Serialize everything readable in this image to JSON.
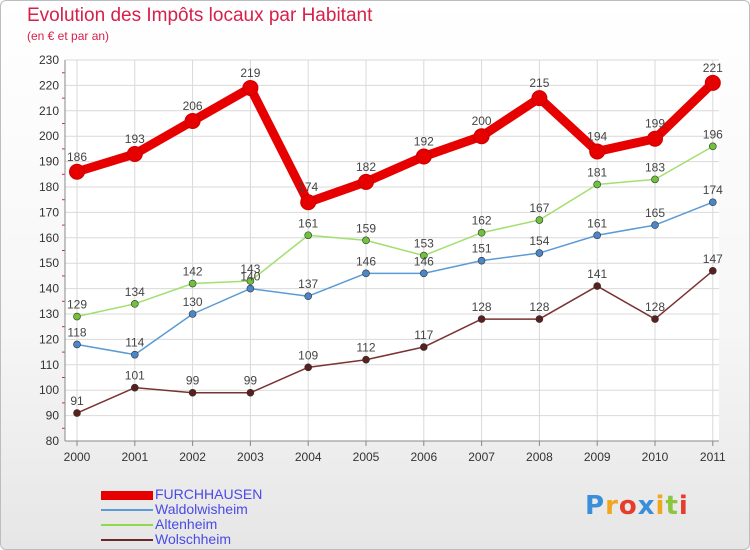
{
  "chart_data": {
    "type": "line",
    "title": "Evolution des Impôts locaux par Habitant",
    "subtitle": "(en € et par an)",
    "categories": [
      "2000",
      "2001",
      "2002",
      "2003",
      "2004",
      "2005",
      "2006",
      "2007",
      "2008",
      "2009",
      "2010",
      "2011"
    ],
    "ylim": [
      80,
      230
    ],
    "yticks": [
      80,
      90,
      100,
      110,
      120,
      130,
      140,
      150,
      160,
      170,
      180,
      190,
      200,
      210,
      220,
      230
    ],
    "grid": true,
    "legend_position": "bottom-left",
    "series": [
      {
        "name": "FURCHHAUSEN",
        "color": "#e60000",
        "values": [
          186,
          193,
          206,
          219,
          174,
          182,
          192,
          200,
          215,
          194,
          199,
          221
        ]
      },
      {
        "name": "Waldolwisheim",
        "color": "#5b9bd5",
        "values": [
          118,
          114,
          130,
          140,
          137,
          146,
          146,
          151,
          154,
          161,
          165,
          174
        ]
      },
      {
        "name": "Altenheim",
        "color": "#8fd94f",
        "values": [
          129,
          134,
          142,
          143,
          161,
          159,
          153,
          162,
          167,
          181,
          183,
          196
        ]
      },
      {
        "name": "Wolschheim",
        "color": "#6b2a2a",
        "values": [
          91,
          101,
          99,
          99,
          109,
          112,
          117,
          128,
          128,
          141,
          128,
          147
        ]
      }
    ]
  },
  "logo": {
    "text": "Proxiti",
    "letter_colors": [
      "#3a8fd8",
      "#f2a51f",
      "#e63c2e",
      "#3a8fd8",
      "#f2a51f",
      "#8cc63f",
      "#e63c2e"
    ]
  }
}
